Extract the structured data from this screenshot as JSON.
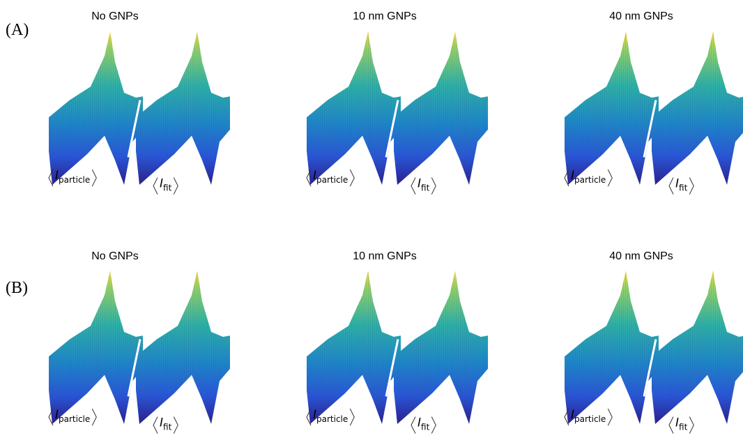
{
  "rows": [
    {
      "label": "(A)",
      "panels": [
        {
          "title": "No GNPs",
          "left_label": {
            "symbol": "I",
            "sub": "particle"
          },
          "right_label": {
            "symbol": "I",
            "sub": "fit"
          }
        },
        {
          "title": "10 nm GNPs",
          "left_label": {
            "symbol": "I",
            "sub": "particle"
          },
          "right_label": {
            "symbol": "I",
            "sub": "fit"
          }
        },
        {
          "title": "40 nm GNPs",
          "left_label": {
            "symbol": "I",
            "sub": "particle"
          },
          "right_label": {
            "symbol": "I",
            "sub": "fit"
          }
        }
      ]
    },
    {
      "label": "(B)",
      "panels": [
        {
          "title": "No GNPs",
          "left_label": {
            "symbol": "I",
            "sub": "particle"
          },
          "right_label": {
            "symbol": "I",
            "sub": "fit"
          }
        },
        {
          "title": "10 nm GNPs",
          "left_label": {
            "symbol": "I",
            "sub": "particle"
          },
          "right_label": {
            "symbol": "I",
            "sub": "fit"
          }
        },
        {
          "title": "40 nm GNPs",
          "left_label": {
            "symbol": "I",
            "sub": "particle"
          },
          "right_label": {
            "symbol": "I",
            "sub": "fit"
          }
        }
      ]
    }
  ]
}
